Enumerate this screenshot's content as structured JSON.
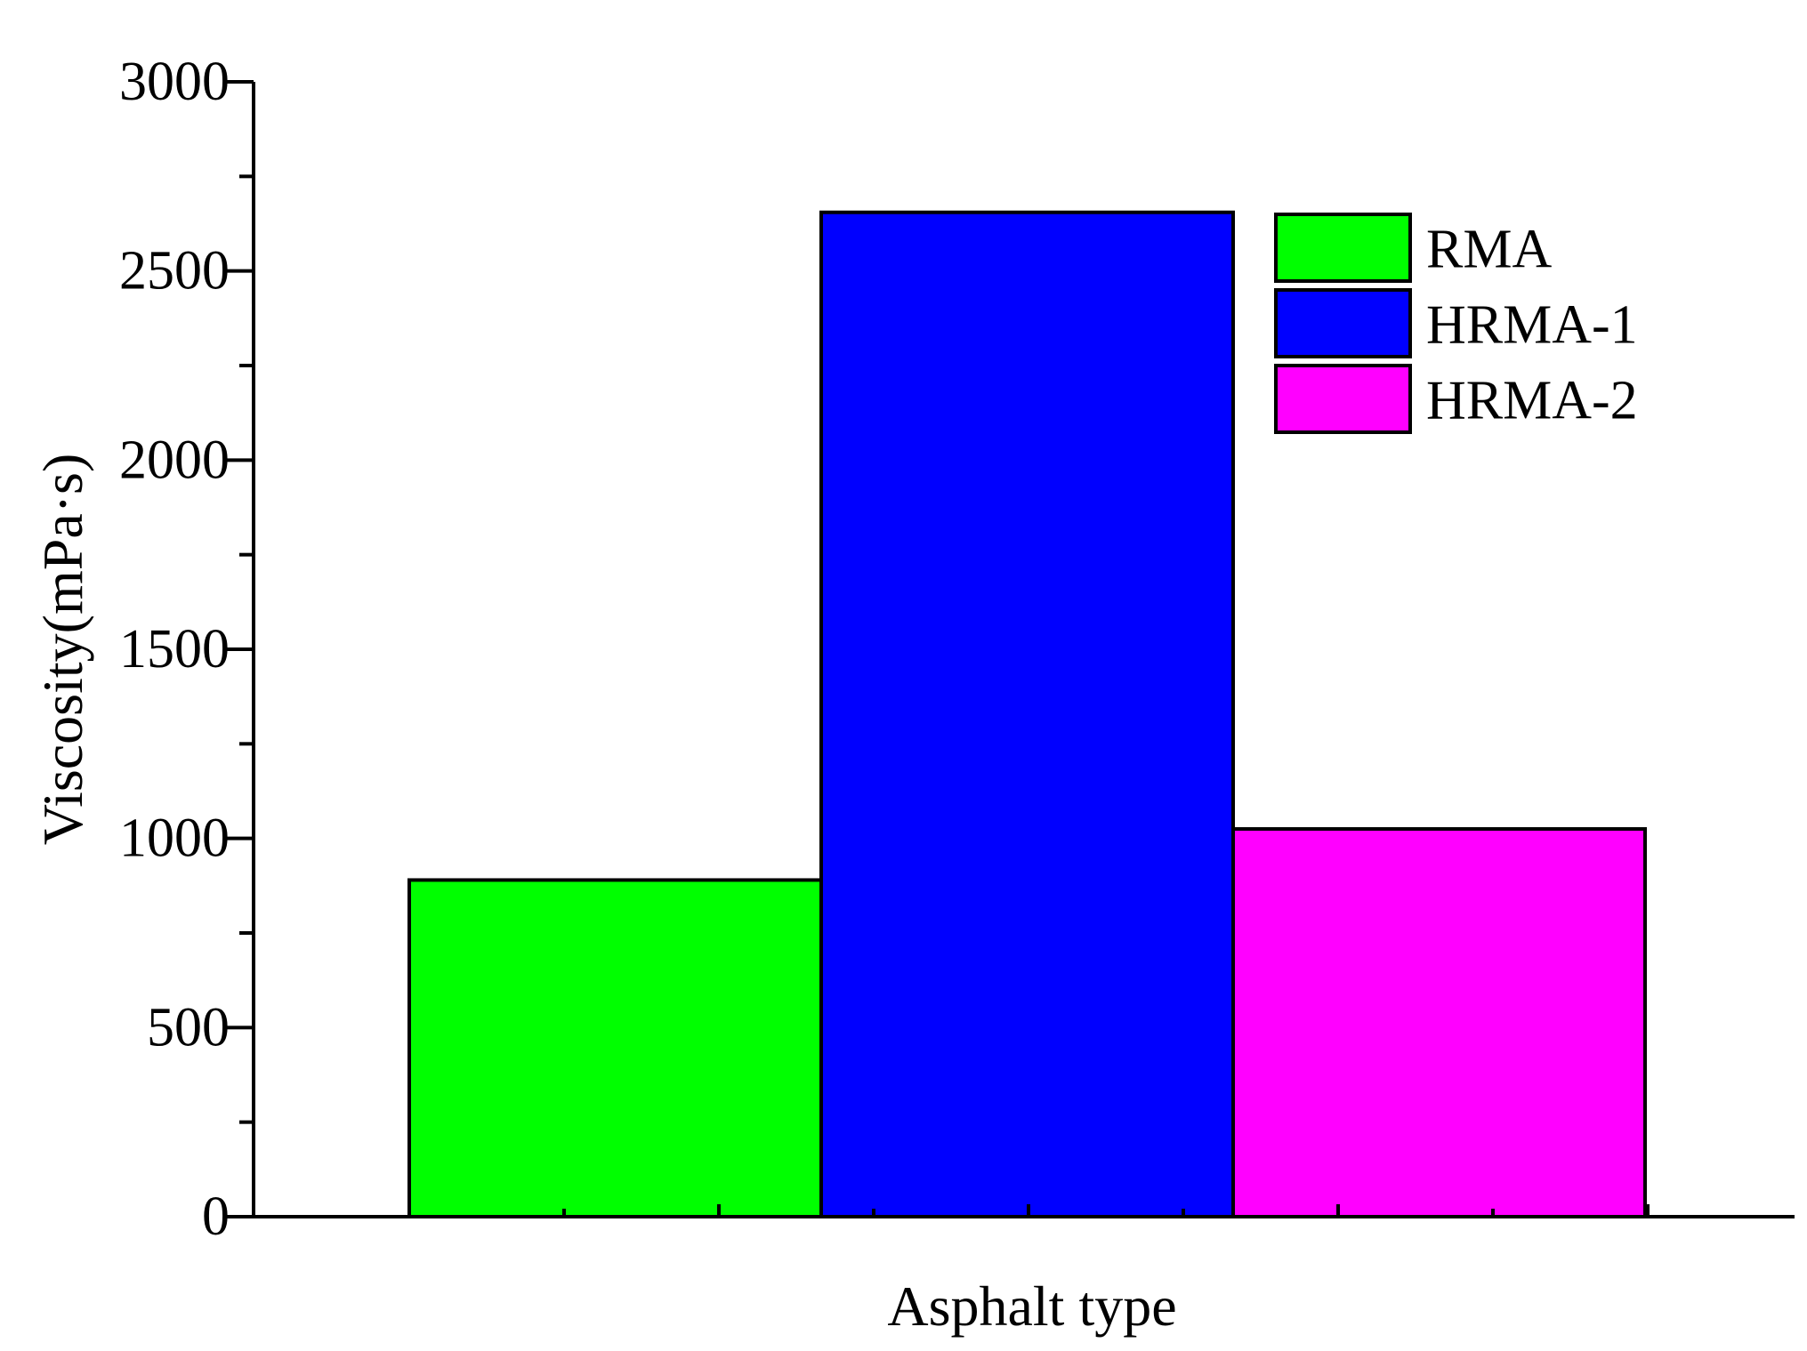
{
  "chart_data": {
    "type": "bar",
    "title": "",
    "xlabel": "Asphalt type",
    "ylabel": "Viscosity(mPa·s)",
    "ylim": [
      0,
      3000
    ],
    "yticks": [
      "0",
      "500",
      "1000",
      "1500",
      "2000",
      "2500",
      "3000"
    ],
    "grid": false,
    "legend_position": "top-right",
    "series": [
      {
        "name": "RMA",
        "value": 890,
        "color": "#00ff00"
      },
      {
        "name": "HRMA-1",
        "value": 2655,
        "color": "#0000ff"
      },
      {
        "name": "HRMA-2",
        "value": 1025,
        "color": "#ff00ff"
      }
    ]
  }
}
